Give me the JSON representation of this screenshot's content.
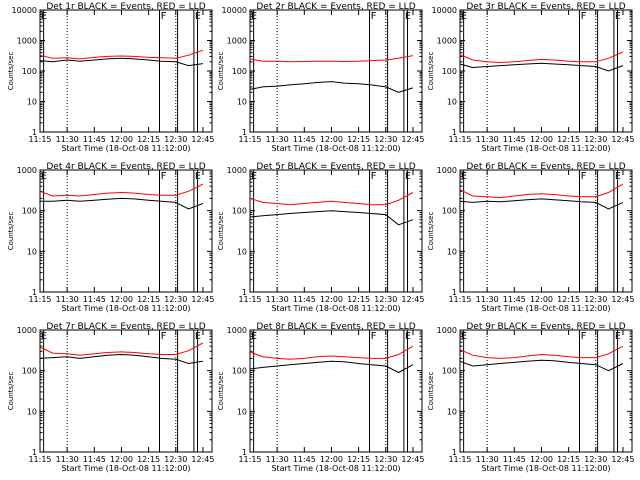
{
  "chart_data": [
    {
      "type": "line",
      "title": "Det 1r BLACK = Events, RED = LLD",
      "xlabel": "Start Time (18-Oct-08 11:12:00)",
      "ylabel": "Counts/sec",
      "x": [
        "11:15",
        "11:22",
        "11:30",
        "11:37",
        "11:45",
        "11:52",
        "12:00",
        "12:07",
        "12:15",
        "12:22",
        "12:30",
        "12:37",
        "12:45"
      ],
      "series": [
        {
          "name": "Events",
          "color": "#000000",
          "values": [
            220,
            200,
            230,
            210,
            230,
            250,
            260,
            250,
            230,
            210,
            200,
            150,
            175
          ]
        },
        {
          "name": "LLD",
          "color": "#ff0000",
          "values": [
            330,
            260,
            270,
            250,
            280,
            300,
            310,
            300,
            280,
            270,
            260,
            330,
            480
          ]
        }
      ]
    },
    {
      "type": "line",
      "title": "Det 2r BLACK = Events, RED = LLD",
      "xlabel": "Start Time (18-Oct-08 11:12:00)",
      "ylabel": "Counts/sec",
      "x": [
        "11:15",
        "11:22",
        "11:30",
        "11:37",
        "11:45",
        "11:52",
        "12:00",
        "12:07",
        "12:15",
        "12:22",
        "12:30",
        "12:37",
        "12:45"
      ],
      "series": [
        {
          "name": "Events",
          "color": "#000000",
          "values": [
            25,
            30,
            32,
            35,
            38,
            42,
            45,
            40,
            38,
            35,
            30,
            20,
            28
          ]
        },
        {
          "name": "LLD",
          "color": "#ff0000",
          "values": [
            250,
            210,
            210,
            200,
            205,
            210,
            210,
            205,
            210,
            220,
            230,
            260,
            320
          ]
        }
      ]
    },
    {
      "type": "line",
      "title": "Det 3r BLACK = Events, RED = LLD",
      "xlabel": "Start Time (18-Oct-08 11:12:00)",
      "ylabel": "Counts/sec",
      "x": [
        "11:15",
        "11:22",
        "11:30",
        "11:37",
        "11:45",
        "11:52",
        "12:00",
        "12:07",
        "12:15",
        "12:22",
        "12:30",
        "12:37",
        "12:45"
      ],
      "series": [
        {
          "name": "Events",
          "color": "#000000",
          "values": [
            170,
            130,
            140,
            150,
            160,
            170,
            180,
            170,
            160,
            150,
            140,
            100,
            150
          ]
        },
        {
          "name": "LLD",
          "color": "#ff0000",
          "values": [
            350,
            230,
            200,
            190,
            200,
            220,
            240,
            230,
            210,
            200,
            200,
            260,
            420
          ]
        }
      ]
    },
    {
      "type": "line",
      "title": "Det 4r BLACK = Events, RED = LLD",
      "xlabel": "Start Time (18-Oct-08 11:12:00)",
      "ylabel": "Counts/sec",
      "x": [
        "11:15",
        "11:22",
        "11:30",
        "11:37",
        "11:45",
        "11:52",
        "12:00",
        "12:07",
        "12:15",
        "12:22",
        "12:30",
        "12:37",
        "12:45"
      ],
      "series": [
        {
          "name": "Events",
          "color": "#000000",
          "values": [
            170,
            170,
            180,
            170,
            180,
            190,
            200,
            195,
            180,
            170,
            160,
            110,
            150
          ]
        },
        {
          "name": "LLD",
          "color": "#ff0000",
          "values": [
            300,
            230,
            240,
            230,
            250,
            270,
            280,
            270,
            250,
            240,
            240,
            300,
            450
          ]
        }
      ]
    },
    {
      "type": "line",
      "title": "Det 5r BLACK = Events, RED = LLD",
      "xlabel": "Start Time (18-Oct-08 11:12:00)",
      "ylabel": "Counts/sec",
      "x": [
        "11:15",
        "11:22",
        "11:30",
        "11:37",
        "11:45",
        "11:52",
        "12:00",
        "12:07",
        "12:15",
        "12:22",
        "12:30",
        "12:37",
        "12:45"
      ],
      "series": [
        {
          "name": "Events",
          "color": "#000000",
          "values": [
            70,
            75,
            80,
            85,
            90,
            95,
            100,
            95,
            90,
            85,
            80,
            45,
            60
          ]
        },
        {
          "name": "LLD",
          "color": "#ff0000",
          "values": [
            200,
            160,
            150,
            140,
            150,
            160,
            170,
            160,
            150,
            140,
            140,
            180,
            280
          ]
        }
      ]
    },
    {
      "type": "line",
      "title": "Det 6r BLACK = Events, RED = LLD",
      "xlabel": "Start Time (18-Oct-08 11:12:00)",
      "ylabel": "Counts/sec",
      "x": [
        "11:15",
        "11:22",
        "11:30",
        "11:37",
        "11:45",
        "11:52",
        "12:00",
        "12:07",
        "12:15",
        "12:22",
        "12:30",
        "12:37",
        "12:45"
      ],
      "series": [
        {
          "name": "Events",
          "color": "#000000",
          "values": [
            170,
            160,
            170,
            165,
            175,
            185,
            195,
            185,
            175,
            165,
            160,
            110,
            160
          ]
        },
        {
          "name": "LLD",
          "color": "#ff0000",
          "values": [
            330,
            230,
            220,
            210,
            230,
            250,
            260,
            250,
            230,
            220,
            220,
            280,
            450
          ]
        }
      ]
    },
    {
      "type": "line",
      "title": "Det 7r BLACK = Events, RED = LLD",
      "xlabel": "Start Time (18-Oct-08 11:12:00)",
      "ylabel": "Counts/sec",
      "x": [
        "11:15",
        "11:22",
        "11:30",
        "11:37",
        "11:45",
        "11:52",
        "12:00",
        "12:07",
        "12:15",
        "12:22",
        "12:30",
        "12:37",
        "12:45"
      ],
      "series": [
        {
          "name": "Events",
          "color": "#000000",
          "values": [
            200,
            210,
            220,
            200,
            220,
            240,
            250,
            240,
            220,
            200,
            190,
            150,
            170
          ]
        },
        {
          "name": "LLD",
          "color": "#ff0000",
          "values": [
            380,
            270,
            260,
            240,
            260,
            280,
            290,
            280,
            260,
            250,
            250,
            310,
            480
          ]
        }
      ]
    },
    {
      "type": "line",
      "title": "Det 8r BLACK = Events, RED = LLD",
      "xlabel": "Start Time (18-Oct-08 11:12:00)",
      "ylabel": "Counts/sec",
      "x": [
        "11:15",
        "11:22",
        "11:30",
        "11:37",
        "11:45",
        "11:52",
        "12:00",
        "12:07",
        "12:15",
        "12:22",
        "12:30",
        "12:37",
        "12:45"
      ],
      "series": [
        {
          "name": "Events",
          "color": "#000000",
          "values": [
            110,
            120,
            130,
            140,
            150,
            160,
            170,
            165,
            150,
            140,
            130,
            90,
            140
          ]
        },
        {
          "name": "LLD",
          "color": "#ff0000",
          "values": [
            290,
            220,
            200,
            190,
            200,
            220,
            230,
            220,
            210,
            200,
            200,
            250,
            400
          ]
        }
      ]
    },
    {
      "type": "line",
      "title": "Det 9r BLACK = Events, RED = LLD",
      "xlabel": "Start Time (18-Oct-08 11:12:00)",
      "ylabel": "Counts/sec",
      "x": [
        "11:15",
        "11:22",
        "11:30",
        "11:37",
        "11:45",
        "11:52",
        "12:00",
        "12:07",
        "12:15",
        "12:22",
        "12:30",
        "12:37",
        "12:45"
      ],
      "series": [
        {
          "name": "Events",
          "color": "#000000",
          "values": [
            170,
            130,
            140,
            150,
            160,
            170,
            180,
            175,
            160,
            150,
            140,
            100,
            150
          ]
        },
        {
          "name": "LLD",
          "color": "#ff0000",
          "values": [
            330,
            240,
            210,
            200,
            210,
            230,
            250,
            240,
            220,
            210,
            210,
            260,
            400
          ]
        }
      ]
    }
  ],
  "common": {
    "x_ticks": [
      "11:15",
      "11:30",
      "11:45",
      "12:00",
      "12:15",
      "12:30",
      "12:45"
    ],
    "y_ticks_a": [
      "1",
      "10",
      "100",
      "1000",
      "10000"
    ],
    "y_ticks_b": [
      "1",
      "10",
      "100",
      "1000"
    ],
    "markers": [
      "E",
      "F",
      "E"
    ],
    "ylim_a": [
      1,
      10000
    ],
    "ylim_b": [
      1,
      1000
    ],
    "scale": "log"
  }
}
